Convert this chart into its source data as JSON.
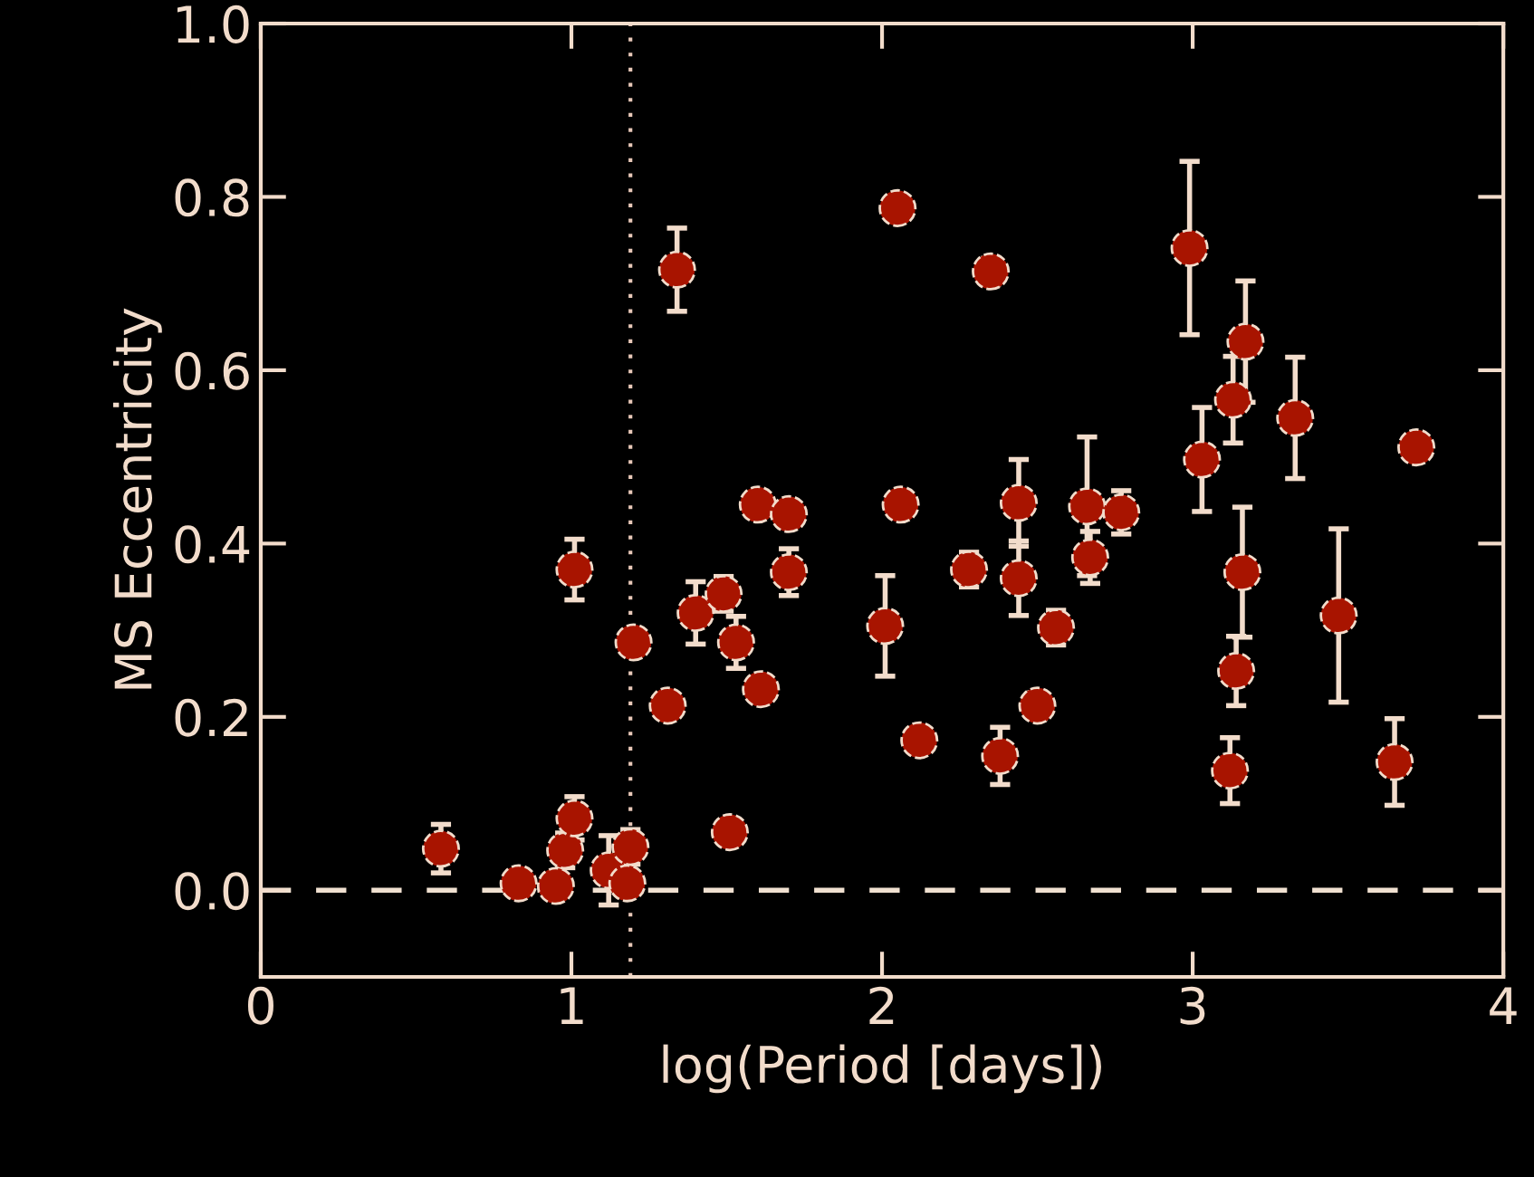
{
  "chart_data": {
    "type": "scatter",
    "xlabel": "log(Period [days])",
    "ylabel": "MS Eccentricity",
    "xlim": [
      0,
      4
    ],
    "ylim": [
      -0.1,
      1.0
    ],
    "xticks": [
      0,
      1,
      2,
      3,
      4
    ],
    "yticks": [
      {
        "value": 0,
        "label": "0.0"
      },
      {
        "value": 0.2,
        "label": "0.2"
      },
      {
        "value": 0.4,
        "label": "0.4"
      },
      {
        "value": 0.6,
        "label": "0.6"
      },
      {
        "value": 0.8,
        "label": "0.8"
      },
      {
        "value": 1.0,
        "label": "1.0"
      }
    ],
    "grid": false,
    "legend": false,
    "marker": "circle",
    "ref_lines": [
      {
        "axis": "x",
        "value": 1.19,
        "color": "#e8c8b8",
        "line_style": "dotted"
      },
      {
        "axis": "y",
        "value": 0,
        "color": "#f0e0d0",
        "line_style": "dashed"
      }
    ],
    "series": [
      {
        "color": "#a81400",
        "x": [
          0.58,
          0.83,
          0.95,
          0.98,
          1.01,
          1.01,
          1.12,
          1.19,
          1.18,
          1.2,
          1.31,
          1.34,
          1.4,
          1.49,
          1.53,
          1.51,
          1.61,
          1.6,
          1.7,
          1.7,
          2.01,
          2.05,
          2.06,
          2.12,
          2.28,
          2.35,
          2.38,
          2.44,
          2.44,
          2.5,
          2.56,
          2.66,
          2.67,
          2.77,
          2.99,
          3.03,
          3.12,
          3.13,
          3.14,
          3.16,
          3.17,
          3.33,
          3.47,
          3.65,
          3.72
        ],
        "values": [
          0.048,
          0.008,
          0.005,
          0.046,
          0.083,
          0.37,
          0.023,
          0.05,
          0.008,
          0.286,
          0.213,
          0.716,
          0.32,
          0.342,
          0.286,
          0.067,
          0.232,
          0.445,
          0.434,
          0.367,
          0.305,
          0.787,
          0.445,
          0.173,
          0.37,
          0.714,
          0.155,
          0.447,
          0.36,
          0.213,
          0.303,
          0.443,
          0.384,
          0.436,
          0.741,
          0.497,
          0.138,
          0.566,
          0.253,
          0.367,
          0.633,
          0.545,
          0.317,
          0.148,
          0.511
        ],
        "errors": [
          0.028,
          null,
          null,
          0.02,
          0.025,
          0.035,
          0.04,
          0.02,
          null,
          null,
          null,
          0.048,
          0.036,
          0.02,
          0.03,
          null,
          null,
          null,
          null,
          0.027,
          0.058,
          null,
          null,
          null,
          0.02,
          0.015,
          0.033,
          0.05,
          0.043,
          0.015,
          0.02,
          0.08,
          0.03,
          0.025,
          0.1,
          0.06,
          0.038,
          0.05,
          0.04,
          0.075,
          0.07,
          0.07,
          0.1,
          0.05,
          null
        ]
      }
    ]
  }
}
